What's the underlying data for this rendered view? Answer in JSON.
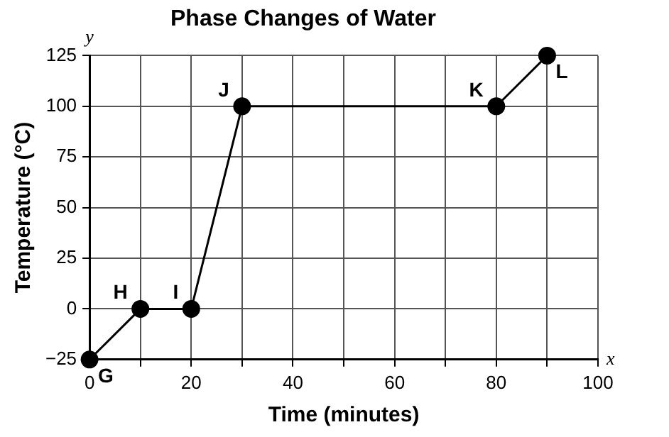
{
  "chart_data": {
    "type": "line",
    "title": "Phase Changes of Water",
    "xlabel": "Time (minutes)",
    "ylabel": "Temperature (°C)",
    "x": [
      0,
      10,
      20,
      30,
      80,
      90
    ],
    "series": [
      {
        "color": "#000000",
        "values": [
          -25,
          0,
          0,
          100,
          100,
          125
        ]
      }
    ],
    "marker": "circle",
    "grid": true,
    "legend": false,
    "xlim": [
      0,
      100
    ],
    "xticks": [
      0,
      {
        "value": 10,
        "label": null
      },
      20,
      {
        "value": 30,
        "label": null
      },
      40,
      {
        "value": 50,
        "label": null
      },
      60,
      {
        "value": 70,
        "label": null
      },
      80,
      {
        "value": 90,
        "label": null
      },
      100
    ],
    "ylim": [
      -25,
      125
    ],
    "yticks": [
      -25,
      0,
      25,
      50,
      75,
      100,
      125
    ],
    "annotations": [
      {
        "text": "G",
        "x": 0,
        "y": -25
      },
      {
        "text": "H",
        "x": 10,
        "y": 0
      },
      {
        "text": "I",
        "x": 20,
        "y": 0
      },
      {
        "text": "J",
        "x": 30,
        "y": 100
      },
      {
        "text": "K",
        "x": 80,
        "y": 100
      },
      {
        "text": "L",
        "x": 90,
        "y": 125
      },
      "y",
      "x"
    ]
  }
}
